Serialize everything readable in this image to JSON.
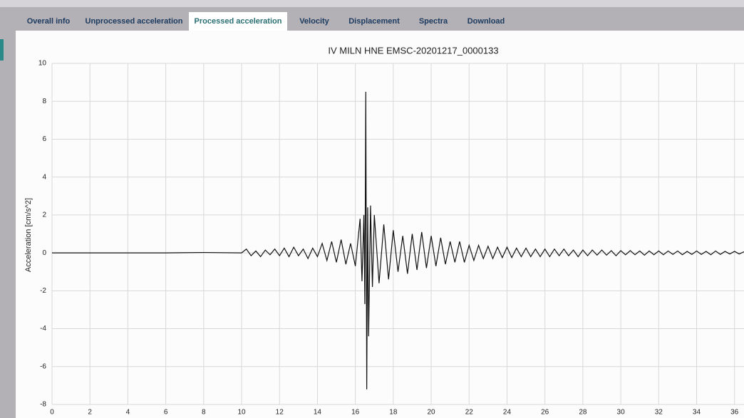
{
  "tabs": [
    "Overall info",
    "Unprocessed acceleration",
    "Processed acceleration",
    "Velocity",
    "Displacement",
    "Spectra",
    "Download"
  ],
  "chart_data": {
    "type": "line",
    "title": "IV MILN HNE EMSC-20201217_0000133",
    "y_label": "Acceleration [cm/s^2]",
    "x": [
      0,
      2,
      4,
      6,
      8,
      10,
      10.25,
      10.5,
      10.75,
      11,
      11.25,
      11.5,
      11.75,
      12,
      12.25,
      12.5,
      12.75,
      13,
      13.25,
      13.5,
      13.75,
      14,
      14.25,
      14.5,
      14.75,
      15,
      15.25,
      15.5,
      15.75,
      16,
      16.25,
      16.35,
      16.45,
      16.5,
      16.55,
      16.6,
      16.65,
      16.7,
      16.8,
      16.9,
      17,
      17.25,
      17.5,
      17.75,
      18,
      18.25,
      18.5,
      18.75,
      19,
      19.25,
      19.5,
      19.75,
      20,
      20.25,
      20.5,
      20.75,
      21,
      21.25,
      21.5,
      21.75,
      22,
      22.25,
      22.5,
      22.75,
      23,
      23.25,
      23.5,
      23.75,
      24,
      24.25,
      24.5,
      24.75,
      25,
      25.25,
      25.5,
      25.75,
      26,
      26.25,
      26.5,
      26.75,
      27,
      27.25,
      27.5,
      27.75,
      28,
      28.25,
      28.5,
      28.75,
      29,
      29.25,
      29.5,
      29.75,
      30,
      30.25,
      30.5,
      30.75,
      31,
      31.25,
      31.5,
      31.75,
      32,
      32.25,
      32.5,
      32.75,
      33,
      33.25,
      33.5,
      33.75,
      34,
      34.25,
      34.5,
      34.75,
      35,
      35.25,
      35.5,
      35.75,
      36,
      36.25,
      36.5
    ],
    "series": [
      {
        "color": "#111111",
        "values": [
          0,
          0,
          0,
          0,
          0.02,
          0,
          0.2,
          -0.15,
          0.1,
          -0.2,
          0.15,
          -0.1,
          0.2,
          -0.15,
          0.25,
          -0.2,
          0.3,
          -0.15,
          0.2,
          -0.3,
          0.25,
          -0.2,
          0.5,
          -0.4,
          0.6,
          -0.5,
          0.7,
          -0.6,
          0.5,
          -0.7,
          1.8,
          -1.5,
          2.0,
          -2.7,
          8.5,
          -7.2,
          2.4,
          -4.4,
          2.5,
          -1.8,
          2.0,
          -1.6,
          1.5,
          -1.4,
          1.2,
          -1.0,
          0.9,
          -1.1,
          1.0,
          -0.9,
          1.1,
          -0.8,
          0.9,
          -0.7,
          0.8,
          -0.6,
          0.6,
          -0.5,
          0.6,
          -0.5,
          0.4,
          -0.4,
          0.4,
          -0.3,
          0.35,
          -0.3,
          0.3,
          -0.25,
          0.3,
          -0.25,
          0.25,
          -0.2,
          0.25,
          -0.2,
          0.2,
          -0.2,
          0.2,
          -0.2,
          0.2,
          -0.15,
          0.2,
          -0.15,
          0.15,
          -0.2,
          0.15,
          -0.15,
          0.15,
          -0.12,
          0.15,
          -0.12,
          0.12,
          -0.15,
          0.12,
          -0.1,
          0.12,
          -0.1,
          0.1,
          -0.12,
          0.1,
          -0.1,
          0.1,
          -0.1,
          0.1,
          -0.08,
          0.1,
          -0.1,
          0.08,
          -0.08,
          0.1,
          -0.08,
          0.08,
          -0.1,
          0.1,
          -0.08,
          0.08,
          -0.06,
          0.08,
          -0.06,
          0.06
        ]
      }
    ],
    "xlim": [
      0,
      36.5
    ],
    "ylim": [
      -8,
      10
    ],
    "xticks": [
      0,
      2,
      4,
      6,
      8,
      10,
      12,
      14,
      16,
      18,
      20,
      22,
      24,
      26,
      28,
      30,
      32,
      34,
      36
    ],
    "yticks": [
      -8,
      -6,
      -4,
      -2,
      0,
      2,
      4,
      6,
      8,
      10
    ],
    "grid": true
  }
}
